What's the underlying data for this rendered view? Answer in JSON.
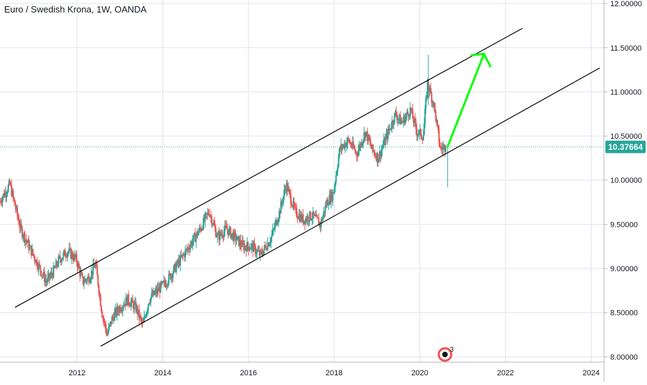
{
  "title": "Euro / Swedish Krona, 1W, OANDA",
  "price_label": "10.37664",
  "notification_badge": "3",
  "colors": {
    "up": "#26a69a",
    "down": "#ef5350",
    "grid": "#e0e3eb",
    "axis_text": "#131722",
    "price_line": "#26a69a",
    "arrow": "#00ff00",
    "channel": "#000000",
    "badge_ring": "#ef5350"
  },
  "chart_data": {
    "type": "candlestick",
    "symbol": "EUR/SEK",
    "interval": "1W",
    "source": "OANDA",
    "xlim": [
      2010.2,
      2024.3
    ],
    "ylim": [
      7.94,
      12.04
    ],
    "x_ticks": [
      "2012",
      "2014",
      "2016",
      "2018",
      "2020",
      "2022",
      "2024"
    ],
    "y_ticks": [
      "8.00000",
      "8.50000",
      "9.00000",
      "9.50000",
      "10.00000",
      "10.50000",
      "11.00000",
      "11.50000",
      "12.00000"
    ],
    "last_price": 10.37664,
    "grid": true,
    "price_anchors": [
      [
        2010.2,
        9.75
      ],
      [
        2010.45,
        9.95
      ],
      [
        2010.7,
        9.45
      ],
      [
        2010.9,
        9.25
      ],
      [
        2011.1,
        9.05
      ],
      [
        2011.3,
        8.85
      ],
      [
        2011.45,
        8.95
      ],
      [
        2011.6,
        9.1
      ],
      [
        2011.8,
        9.2
      ],
      [
        2012.0,
        9.1
      ],
      [
        2012.15,
        8.85
      ],
      [
        2012.3,
        8.9
      ],
      [
        2012.45,
        9.05
      ],
      [
        2012.6,
        8.5
      ],
      [
        2012.72,
        8.25
      ],
      [
        2012.85,
        8.45
      ],
      [
        2013.0,
        8.55
      ],
      [
        2013.2,
        8.65
      ],
      [
        2013.4,
        8.55
      ],
      [
        2013.55,
        8.35
      ],
      [
        2013.7,
        8.65
      ],
      [
        2013.9,
        8.75
      ],
      [
        2014.1,
        8.85
      ],
      [
        2014.3,
        9.0
      ],
      [
        2014.5,
        9.15
      ],
      [
        2014.7,
        9.3
      ],
      [
        2014.9,
        9.45
      ],
      [
        2015.1,
        9.65
      ],
      [
        2015.3,
        9.35
      ],
      [
        2015.5,
        9.45
      ],
      [
        2015.7,
        9.35
      ],
      [
        2015.9,
        9.25
      ],
      [
        2016.1,
        9.25
      ],
      [
        2016.3,
        9.15
      ],
      [
        2016.55,
        9.35
      ],
      [
        2016.75,
        9.65
      ],
      [
        2016.9,
        9.95
      ],
      [
        2017.1,
        9.65
      ],
      [
        2017.3,
        9.55
      ],
      [
        2017.5,
        9.6
      ],
      [
        2017.7,
        9.5
      ],
      [
        2017.85,
        9.75
      ],
      [
        2018.0,
        9.85
      ],
      [
        2018.15,
        10.35
      ],
      [
        2018.35,
        10.45
      ],
      [
        2018.55,
        10.3
      ],
      [
        2018.75,
        10.55
      ],
      [
        2018.9,
        10.35
      ],
      [
        2019.05,
        10.25
      ],
      [
        2019.25,
        10.5
      ],
      [
        2019.45,
        10.75
      ],
      [
        2019.6,
        10.65
      ],
      [
        2019.8,
        10.8
      ],
      [
        2019.95,
        10.55
      ],
      [
        2020.1,
        10.5
      ],
      [
        2020.2,
        11.1
      ],
      [
        2020.35,
        10.85
      ],
      [
        2020.5,
        10.35
      ],
      [
        2020.62,
        10.38
      ]
    ],
    "annotations": [
      {
        "type": "trend_channel_upper",
        "from": [
          2010.55,
          8.56
        ],
        "to": [
          2022.4,
          11.72
        ]
      },
      {
        "type": "trend_channel_lower",
        "from": [
          2012.55,
          8.12
        ],
        "to": [
          2024.2,
          11.27
        ]
      },
      {
        "type": "arrow",
        "from": [
          2020.65,
          10.38
        ],
        "to": [
          2021.5,
          11.43
        ]
      }
    ]
  }
}
